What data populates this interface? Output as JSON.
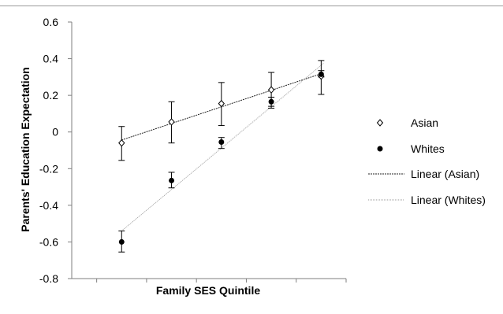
{
  "chart_data": {
    "type": "scatter",
    "title": "",
    "xlabel": "Family SES Quintile",
    "ylabel": "Parents' Education Expectation",
    "ylim": [
      -0.8,
      0.6
    ],
    "y_ticks": [
      0.6,
      0.4,
      0.2,
      0,
      -0.2,
      -0.4,
      -0.6,
      -0.8
    ],
    "y_tick_labels": [
      "0.6",
      "0.4",
      "0.2",
      "0",
      "-0.2",
      "-0.4",
      "-0.6",
      "-0.8"
    ],
    "x": [
      1,
      2,
      3,
      4,
      5
    ],
    "xlim": [
      0,
      5.5
    ],
    "grid": false,
    "legend_placement": "right",
    "series": [
      {
        "name": "Asian",
        "marker": "open-diamond",
        "values": [
          -0.06,
          0.055,
          0.155,
          0.23,
          0.305
        ],
        "err_upper": [
          0.03,
          0.165,
          0.27,
          0.325,
          0.39
        ],
        "err_lower": [
          -0.155,
          -0.06,
          0.035,
          0.14,
          0.205
        ]
      },
      {
        "name": "Whites",
        "marker": "filled-circle",
        "values": [
          -0.6,
          -0.265,
          -0.055,
          0.165,
          0.315
        ],
        "err_upper": [
          -0.54,
          -0.22,
          -0.03,
          0.19,
          0.335
        ],
        "err_lower": [
          -0.655,
          -0.305,
          -0.09,
          0.13,
          0.3
        ]
      }
    ],
    "trendlines": [
      {
        "name": "Linear (Asian)",
        "series": "Asian",
        "style": "dashed-dark"
      },
      {
        "name": "Linear (Whites)",
        "series": "Whites",
        "style": "dotted-light"
      }
    ],
    "legend": [
      "Asian",
      "Whites",
      "Linear (Asian)",
      "Linear (Whites)"
    ]
  }
}
